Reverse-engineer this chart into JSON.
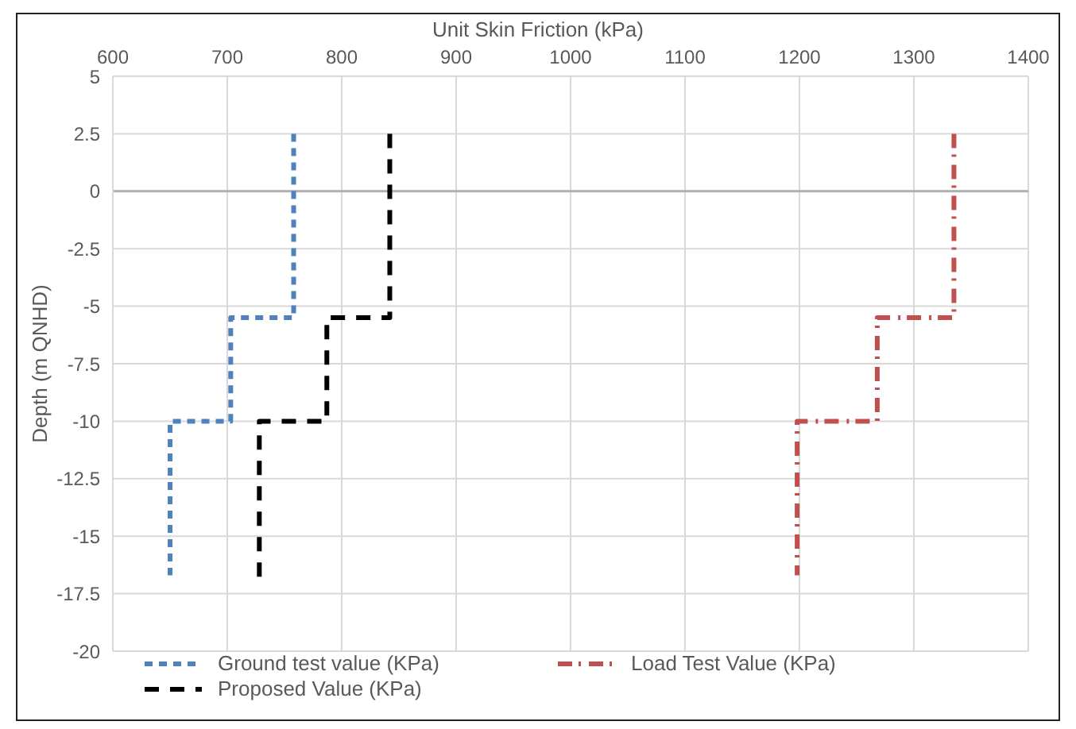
{
  "chart_data": {
    "type": "line",
    "xlabel": "Unit Skin Friction (kPa)",
    "ylabel": "Depth (m QNHD)",
    "xlim": [
      600,
      1400
    ],
    "xticks": [
      600,
      700,
      800,
      900,
      1000,
      1100,
      1200,
      1300,
      1400
    ],
    "ylim": [
      -20,
      5
    ],
    "yticks": [
      5,
      2.5,
      0,
      -2.5,
      -5,
      -7.5,
      -10,
      -12.5,
      -15,
      -17.5,
      -20
    ],
    "grid": true,
    "legend": "bottom",
    "marker": "none",
    "line_style": "dashed",
    "ref_lines": [
      {
        "axis": "y",
        "value": 0,
        "color": "#b0b0b0"
      }
    ],
    "series": [
      {
        "name": "Ground test value (KPa)",
        "color": "#4f81bd",
        "x": [
          758,
          758,
          703,
          703,
          650,
          650
        ],
        "values": [
          2.5,
          -5.5,
          -5.5,
          -10,
          -10,
          -16.7
        ]
      },
      {
        "name": "Load Test Value (KPa)",
        "color": "#c0504d",
        "x": [
          1335,
          1335,
          1268,
          1268,
          1198,
          1198
        ],
        "values": [
          2.5,
          -5.5,
          -5.5,
          -10,
          -10,
          -16.7
        ]
      },
      {
        "name": "Proposed Value (KPa)",
        "color": "#000000",
        "x": [
          842,
          842,
          787,
          787,
          728,
          728
        ],
        "values": [
          2.5,
          -5.5,
          -5.5,
          -10,
          -10,
          -17
        ]
      }
    ]
  }
}
